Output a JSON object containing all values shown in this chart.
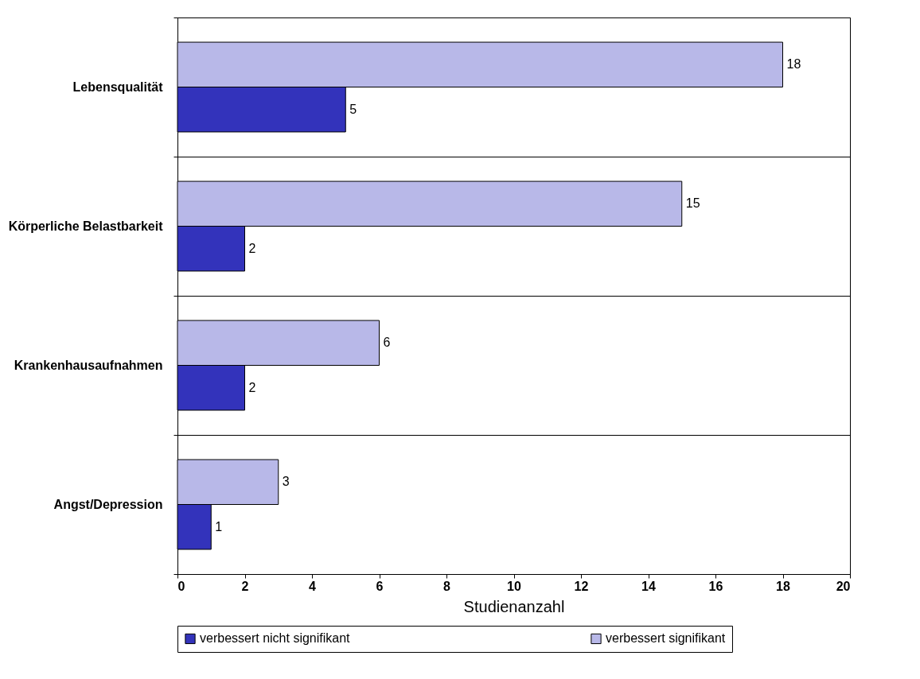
{
  "chart_data": {
    "type": "bar",
    "orientation": "horizontal",
    "xlabel": "Studienanzahl",
    "categories": [
      "Lebensqualität",
      "Körperliche Belastbarkeit",
      "Krankenhausaufnahmen",
      "Angst/Depression"
    ],
    "series": [
      {
        "name": "verbessert nicht signifikant",
        "color": "#3333bb",
        "values": [
          5,
          2,
          2,
          1
        ]
      },
      {
        "name": "verbessert signifikant",
        "color": "#b8b8e8",
        "values": [
          18,
          15,
          6,
          3
        ]
      }
    ],
    "xlim": [
      0,
      20
    ],
    "xticks": [
      0,
      2,
      4,
      6,
      8,
      10,
      12,
      14,
      16,
      18,
      20
    ],
    "grid": "y",
    "legend": "bottom",
    "data_labels": true
  }
}
